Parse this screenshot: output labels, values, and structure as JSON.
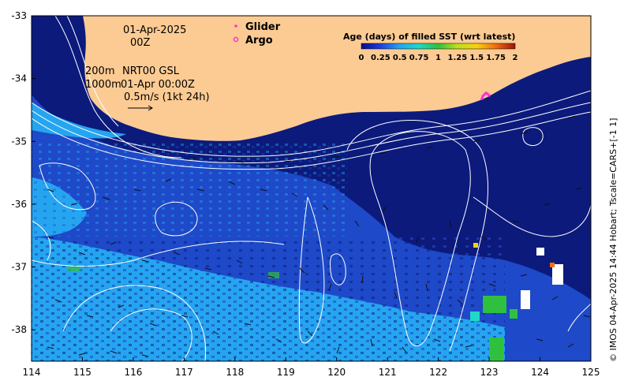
{
  "map": {
    "date_line1": "01-Apr-2025",
    "date_line2": "00Z",
    "depth_line1": "200m",
    "depth_line2": "1000m",
    "product_line1": "NRT00 GSL",
    "product_line2": "01-Apr 00:00Z",
    "current_scale": "0.5m/s (1kt 24h)",
    "credit": "© IMOS 04-Apr-2025 14:44 Hobart; Tscale=CARS+[-1 1]",
    "x_range": [
      114,
      125
    ],
    "y_range": [
      -38.5,
      -33
    ],
    "x_ticks": [
      "114",
      "115",
      "116",
      "117",
      "118",
      "119",
      "120",
      "121",
      "122",
      "123",
      "124",
      "125"
    ],
    "y_ticks": [
      "-33",
      "-34",
      "-35",
      "-36",
      "-37",
      "-38"
    ],
    "colors": {
      "land": "#fccb93",
      "ocean_deep": "#0c1a7c",
      "ocean_mid": "#1e49c8",
      "ocean_light": "#25a5f0",
      "contour": "#ffffff",
      "glider": "#ff30d0",
      "argo": "#ff30d0"
    }
  },
  "legend": {
    "glider_label": "Glider",
    "argo_label": "Argo",
    "glider_icon": "dot-marker-icon",
    "argo_icon": "circle-marker-icon"
  },
  "colorbar": {
    "title": "Age (days) of filled SST (wrt latest)",
    "ticks": [
      "0",
      "0.25",
      "0.5",
      "0.75",
      "1",
      "1.25",
      "1.5",
      "1.75",
      "2"
    ],
    "range": [
      0,
      2
    ]
  }
}
